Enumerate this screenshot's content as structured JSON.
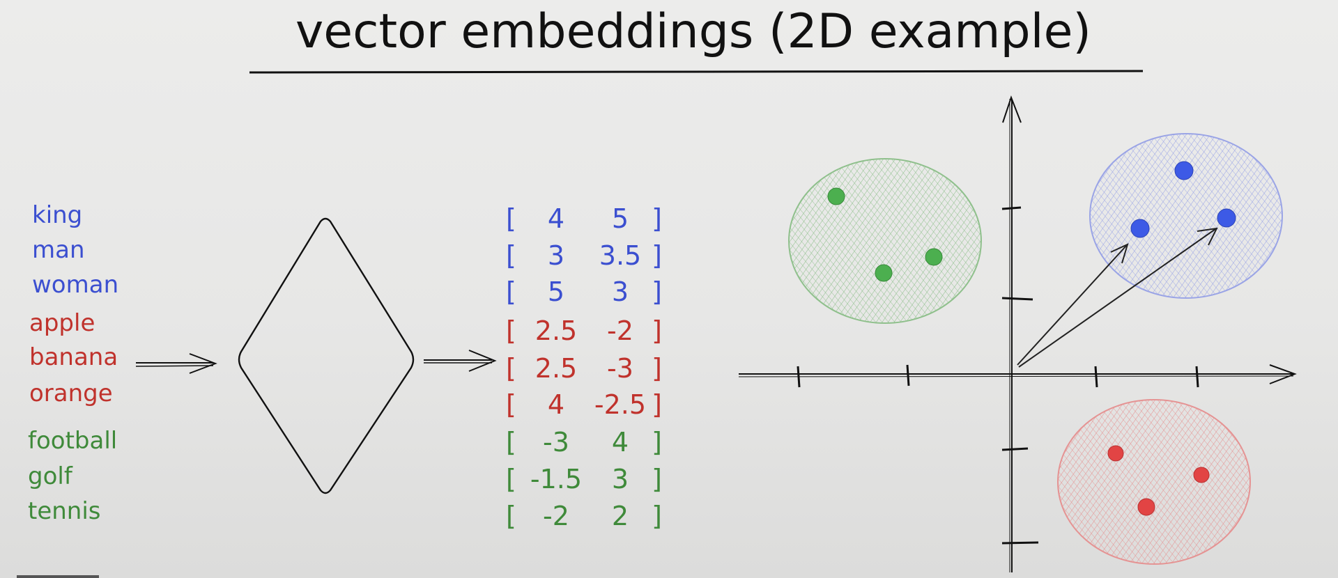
{
  "title": "vector embeddings (2D example)",
  "colors": {
    "blue": "#3b4fd0",
    "red": "#c0322c",
    "green": "#3f8a3a",
    "ink": "#111111",
    "cluster_green": "#9cc99a",
    "cluster_blue": "#a9b2ea",
    "cluster_red": "#eaa0a0",
    "dot_green": "#4caf4f",
    "dot_blue": "#3d5ae6",
    "dot_red": "#e24444"
  },
  "words": [
    {
      "text": "king",
      "group": "blue"
    },
    {
      "text": "man",
      "group": "blue"
    },
    {
      "text": "woman",
      "group": "blue"
    },
    {
      "text": "apple",
      "group": "red"
    },
    {
      "text": "banana",
      "group": "red"
    },
    {
      "text": "orange",
      "group": "red"
    },
    {
      "text": "football",
      "group": "green"
    },
    {
      "text": "golf",
      "group": "green"
    },
    {
      "text": "tennis",
      "group": "green"
    }
  ],
  "vectors": [
    {
      "a": "4",
      "b": "5",
      "group": "blue"
    },
    {
      "a": "3",
      "b": "3.5",
      "group": "blue"
    },
    {
      "a": "5",
      "b": "3",
      "group": "blue"
    },
    {
      "a": "2.5",
      "b": "-2",
      "group": "red"
    },
    {
      "a": "2.5",
      "b": "-3",
      "group": "red"
    },
    {
      "a": "4",
      "b": "-2.5",
      "group": "red"
    },
    {
      "a": "-3",
      "b": "4",
      "group": "green"
    },
    {
      "a": "-1.5",
      "b": "3",
      "group": "green"
    },
    {
      "a": "-2",
      "b": "2",
      "group": "green"
    }
  ],
  "brackets": {
    "open": "[",
    "close": "]"
  },
  "icons": {
    "model": "diamond-model-icon",
    "arrow": "right-arrow-icon"
  }
}
